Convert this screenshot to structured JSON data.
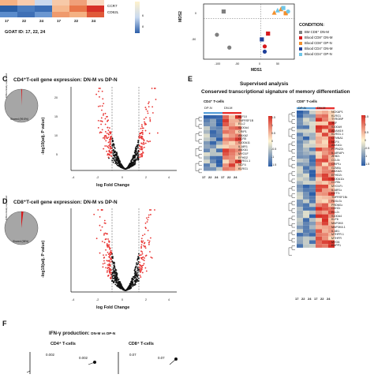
{
  "top_left": {
    "gene_labels": [
      "CCR7",
      "CD62L"
    ],
    "colorbar_ticks": [
      "6",
      "8"
    ],
    "column_labels": [
      "17",
      "22",
      "24",
      "17",
      "22",
      "24"
    ],
    "goat_id": "GOAT ID: 17, 22, 24"
  },
  "mds": {
    "xlabel": "MDS1",
    "ylabel": "MDS2",
    "xticks": [
      "-100",
      "-50",
      "0",
      "50"
    ],
    "yticks": [
      "0",
      "-50"
    ],
    "legend_title": "CONDITION:",
    "legend": [
      {
        "label": "BM CD8⁺ DN-M",
        "color": "#7f7f7f"
      },
      {
        "label": "Blood CD8⁺ DN-M",
        "color": "#d7191c"
      },
      {
        "label": "Blood CD8⁺ DP-N",
        "color": "#f28e2b"
      },
      {
        "label": "Blood CD4⁺ DN-M",
        "color": "#1f3f99"
      },
      {
        "label": "Blood CD4⁺ DP-N",
        "color": "#6ec6e8"
      }
    ],
    "chart_data": {
      "type": "scatter",
      "xlabel": "MDS1",
      "ylabel": "MDS2",
      "points": [
        {
          "x": -78,
          "y": 12,
          "shape": "square",
          "color": "#7f7f7f"
        },
        {
          "x": -92,
          "y": -28,
          "shape": "circle",
          "color": "#7f7f7f"
        },
        {
          "x": -66,
          "y": -50,
          "shape": "circle",
          "color": "#7f7f7f"
        },
        {
          "x": 8,
          "y": -48,
          "shape": "circle",
          "color": "#d7191c"
        },
        {
          "x": 15,
          "y": -26,
          "shape": "square",
          "color": "#d7191c"
        },
        {
          "x": 28,
          "y": 10,
          "shape": "triangle",
          "color": "#f28e2b"
        },
        {
          "x": 42,
          "y": 16,
          "shape": "triangle",
          "color": "#f28e2b"
        },
        {
          "x": 52,
          "y": 9,
          "shape": "square",
          "color": "#f28e2b"
        },
        {
          "x": 8,
          "y": -57,
          "shape": "circle",
          "color": "#1f3f99"
        },
        {
          "x": 2,
          "y": -36,
          "shape": "square",
          "color": "#1f3f99"
        },
        {
          "x": 35,
          "y": 14,
          "shape": "triangle",
          "color": "#6ec6e8"
        },
        {
          "x": 47,
          "y": 18,
          "shape": "square",
          "color": "#6ec6e8"
        },
        {
          "x": 57,
          "y": 12,
          "shape": "circle",
          "color": "#6ec6e8"
        }
      ]
    }
  },
  "panel_c": {
    "letter": "C",
    "title": "CD4⁺T-cell gene expression: DN-M vs DP-N",
    "pie_labels": [
      "Differentially expressed",
      "Shared (99.5%)"
    ],
    "xlabel": "log Fold Change",
    "ylabel": "-log10(adj. P value)",
    "xticks": [
      "-4",
      "-2",
      "0",
      "2",
      "4"
    ],
    "yticks": [
      "5",
      "10",
      "15",
      "20"
    ]
  },
  "panel_d": {
    "letter": "D",
    "title": "CD8⁺T-cell gene expression: DN-M vs DP-N",
    "pie_labels": [
      "Differentially expressed",
      "Shared (98%)"
    ],
    "xlabel": "log Fold Change",
    "ylabel": "-log10(adj. P value)",
    "xticks": [
      "-4",
      "-2",
      "0",
      "2",
      "4"
    ]
  },
  "panel_e": {
    "letter": "E",
    "title1": "Supervised analysis",
    "title2": "Conserved transcriptional signature of memory differentiation",
    "cd4_title": "CD4⁺ T-cells",
    "cd8_title": "CD8⁺ T-cells",
    "group_labels": [
      "DP-N",
      "DN-M"
    ],
    "column_labels": [
      "17",
      "22",
      "24",
      "17",
      "22",
      "24"
    ],
    "cd4_colorbar_ticks": [
      "1.5",
      "1",
      "0.5",
      "0",
      "-0.5",
      "-1",
      "-1.5"
    ],
    "cd8_colorbar_ticks": [
      "1.5",
      "1",
      "0.5",
      "0",
      "-0.5",
      "-1",
      "-1.5"
    ],
    "cd4_genes": [
      "KLF10",
      "TNFRSF1B",
      "ELL2",
      "S100A4",
      "CRIP1",
      "ANXA2",
      "CCR5",
      "S100A11",
      "IL18R1",
      "ANXA1",
      "MYO1F",
      "EFHD2",
      "KLRG1.1",
      "NCF4",
      "KLRG1"
    ],
    "cd8_genes": [
      "NCKAP1",
      "KLRG1",
      "TYROBP",
      "TSF",
      "S100A9",
      "ADAM19",
      "KLRG1.1",
      "CTNNA1",
      "NCF4",
      "ANXA1•",
      "PTPN22•",
      "IL18RAP•",
      "ZEB2•",
      "CCL5•",
      "CRIP1•",
      "GZMA•",
      "ANXA2•",
      "EFHD2•",
      "S100A11•",
      "CCR5•",
      "MYO1F•",
      "IL18R1•",
      "CST7•",
      "TNFRSF1B•",
      "FASLG•",
      "PRDM1•",
      "CDH2•",
      "ELL2•",
      "S100A4",
      "KLF6",
      "MAP3K8",
      "MAP3K8.1",
      "IL18I1",
      "MTHFR.1",
      "MTHFR",
      "MYO6",
      "ENPP1"
    ]
  },
  "panel_f": {
    "letter": "F",
    "title": "IFN-γ production:",
    "title_suffix": "DN-M vs DP-N",
    "cd4_label": "CD4⁺ T-cells",
    "cd8_label": "CD8⁺ T-cells",
    "pvals": [
      "0.002",
      "0.002",
      "0.07",
      "0.07"
    ]
  }
}
